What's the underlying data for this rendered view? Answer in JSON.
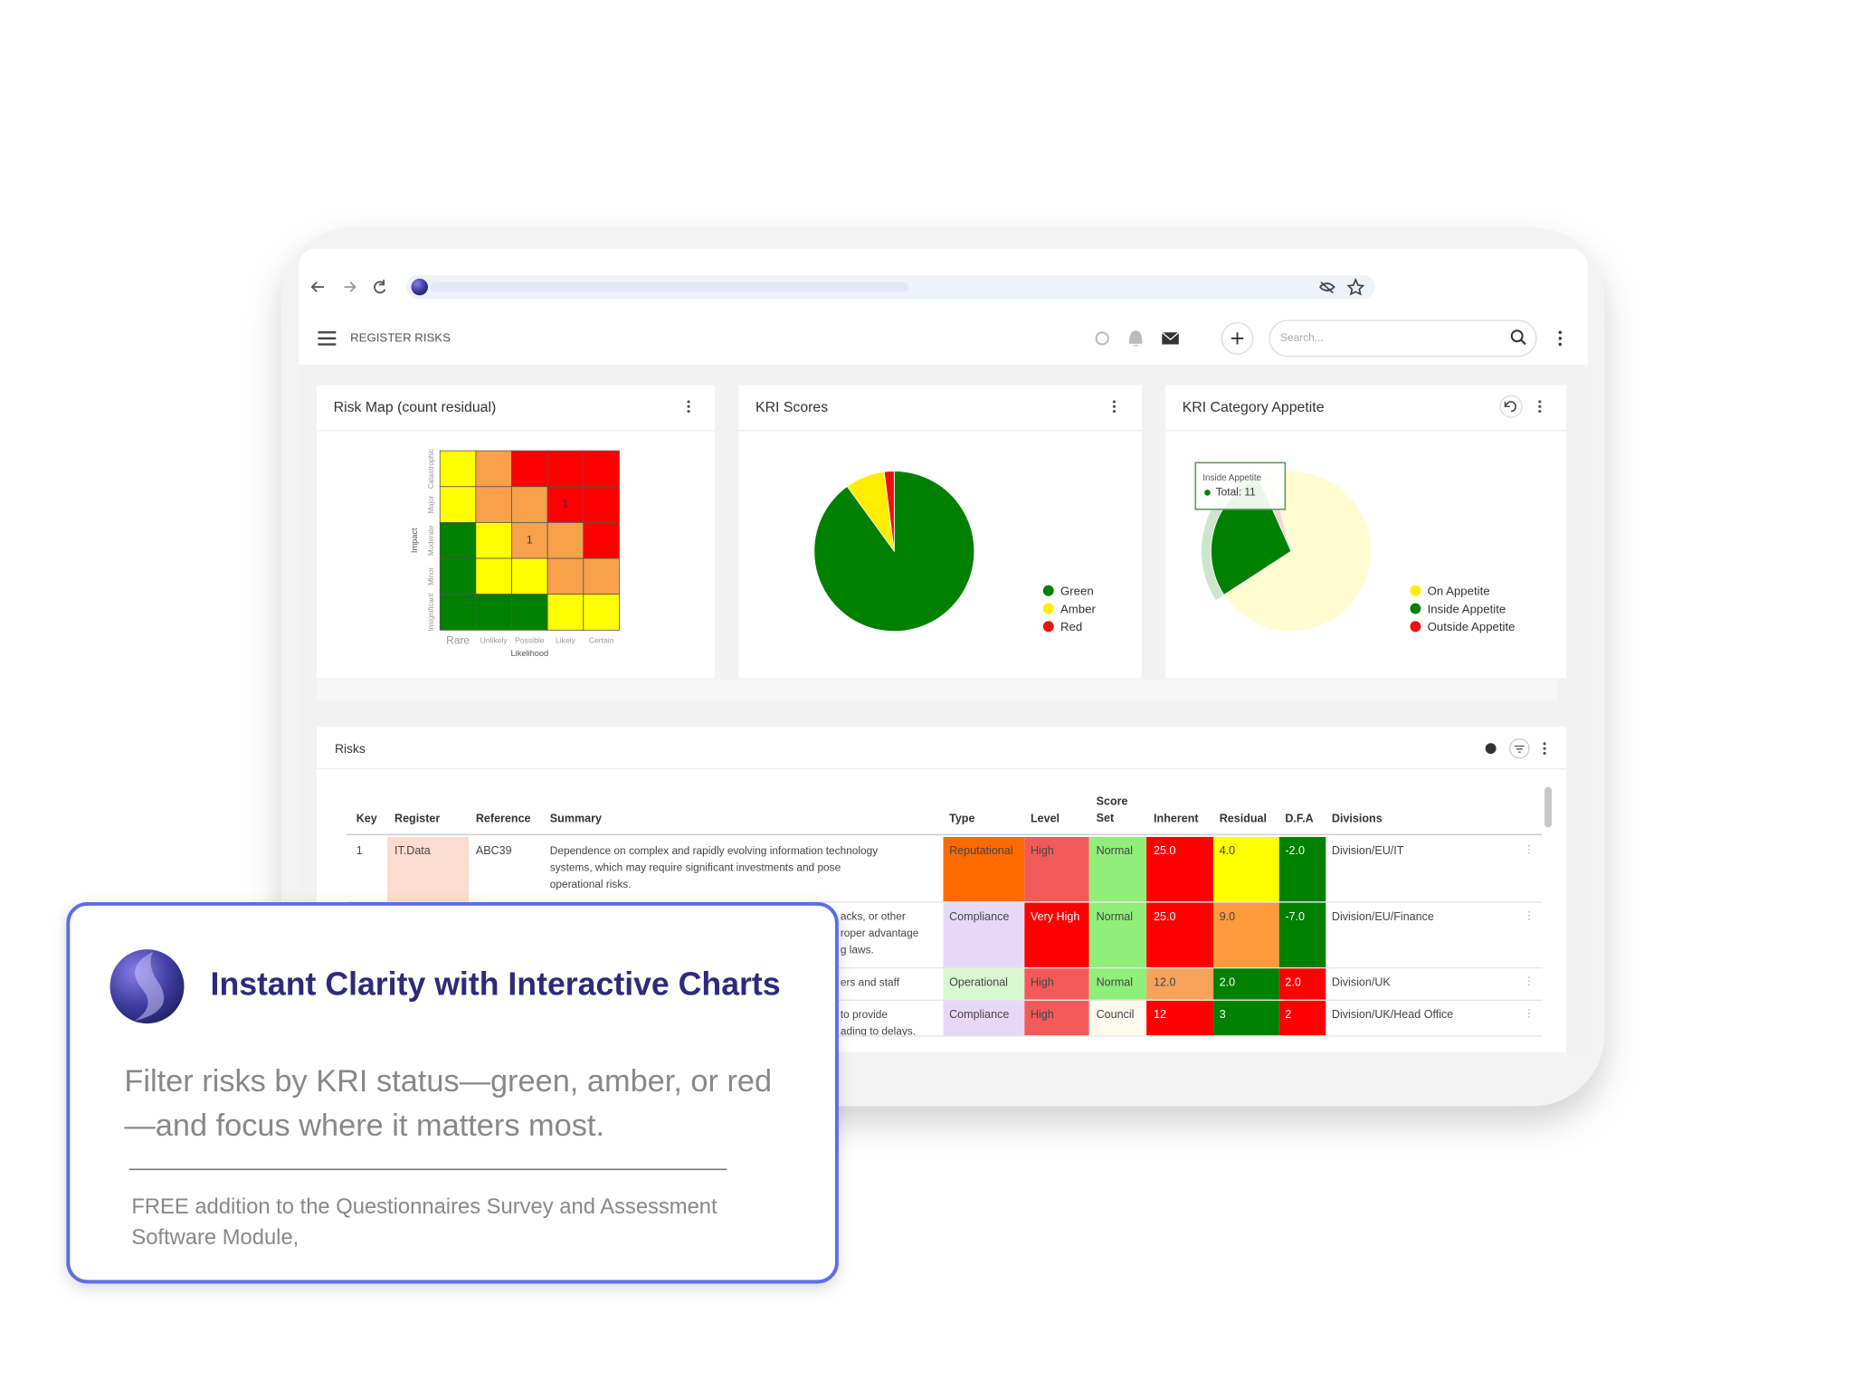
{
  "header": {
    "title": "REGISTER RISKS",
    "search_placeholder": "Search..."
  },
  "chart_data": [
    {
      "type": "heatmap",
      "title": "Risk Map (count residual)",
      "y_label": "Impact",
      "x_label": "Likelihood",
      "rows": [
        "Catastrophic",
        "Major",
        "Moderate",
        "Minor",
        "Insignificant"
      ],
      "columns": [
        "Rare",
        "Unlikely",
        "Possible",
        "Likely",
        "Certain"
      ],
      "colors": [
        [
          "#ffff00",
          "#f8a04a",
          "#ff0000",
          "#ff0000",
          "#ff0000"
        ],
        [
          "#ffff00",
          "#f8a04a",
          "#f8a04a",
          "#ff0000",
          "#ff0000"
        ],
        [
          "#008000",
          "#ffff00",
          "#f8a04a",
          "#f8a04a",
          "#ff0000"
        ],
        [
          "#008000",
          "#ffff00",
          "#ffff00",
          "#f8a04a",
          "#f8a04a"
        ],
        [
          "#008000",
          "#008000",
          "#008000",
          "#ffff00",
          "#ffff00"
        ]
      ],
      "counts": [
        [
          null,
          null,
          null,
          null,
          null
        ],
        [
          null,
          null,
          null,
          1,
          null
        ],
        [
          null,
          null,
          1,
          null,
          null
        ],
        [
          null,
          null,
          null,
          null,
          null
        ],
        [
          null,
          null,
          null,
          null,
          null
        ]
      ]
    },
    {
      "type": "pie",
      "title": "KRI Scores",
      "categories": [
        "Green",
        "Amber",
        "Red"
      ],
      "values": [
        90,
        8,
        2
      ],
      "colors": [
        "#008000",
        "#ffee00",
        "#ee1111"
      ]
    },
    {
      "type": "pie",
      "title": "KRI Category Appetite",
      "categories": [
        "On Appetite",
        "Inside Appetite",
        "Outside Appetite"
      ],
      "values": [
        28,
        11,
        1
      ],
      "colors": [
        "#ffee00",
        "#008000",
        "#ee1111"
      ],
      "highlight": 1,
      "tooltip": {
        "title": "Inside Appetite",
        "text": "Total: 11"
      }
    }
  ],
  "risks": {
    "title": "Risks",
    "columns": [
      "Key",
      "Register",
      "Reference",
      "Summary",
      "Type",
      "Level",
      "Score Set",
      "Inherent",
      "Residual",
      "D.F.A",
      "Divisions"
    ],
    "rows": [
      {
        "cells": [
          "1",
          "IT.Data",
          "ABC39",
          [
            "Dependence on complex and rapidly evolving information technology",
            "systems, which may require significant investments and pose",
            "operational risks."
          ],
          "Reputational",
          "High",
          "Normal",
          "25.0",
          "4.0",
          "-2.0",
          "Division/EU/IT"
        ],
        "colors": [
          null,
          "#fddcd0",
          null,
          null,
          "#ff6a00",
          "#f25a5a",
          "#8fef7a",
          "#ff0000",
          "#ffff00",
          "#008000",
          null
        ]
      },
      {
        "cells": [
          null,
          null,
          null,
          [
            "acks, or other",
            "roper advantage",
            "g laws."
          ],
          "Compliance",
          "Very High",
          "Normal",
          "25.0",
          "9.0",
          "-7.0",
          "Division/EU/Finance"
        ],
        "colors": [
          null,
          null,
          null,
          null,
          "#e8d8f8",
          "#ff0000",
          "#8fef7a",
          "#ff0000",
          "#ff9a3c",
          "#008000",
          null
        ]
      },
      {
        "cells": [
          null,
          null,
          null,
          [
            "ers and staff"
          ],
          "Operational",
          "High",
          "Normal",
          "12.0",
          "2.0",
          "2.0",
          "Division/UK"
        ],
        "colors": [
          null,
          null,
          null,
          null,
          "#d8f8d0",
          "#f25a5a",
          "#8fef7a",
          "#f7a35c",
          "#008000",
          "#ff0000",
          null
        ]
      },
      {
        "cells": [
          null,
          null,
          null,
          [
            "to provide",
            "ading to delays."
          ],
          "Compliance",
          "High",
          "Council",
          "12",
          "3",
          "2",
          "Division/UK/Head Office"
        ],
        "colors": [
          null,
          null,
          null,
          null,
          "#e8d8f8",
          "#f25a5a",
          "#fff8ec",
          "#ff0000",
          "#008000",
          "#ff0000",
          null
        ]
      }
    ]
  },
  "card": {
    "title": "Instant Clarity with Interactive Charts",
    "body": [
      "Filter risks by KRI status—green, amber, or red",
      "—and focus where it matters most."
    ],
    "note": [
      "FREE addition to the Questionnaires Survey and Assessment",
      "Software Module,"
    ]
  }
}
